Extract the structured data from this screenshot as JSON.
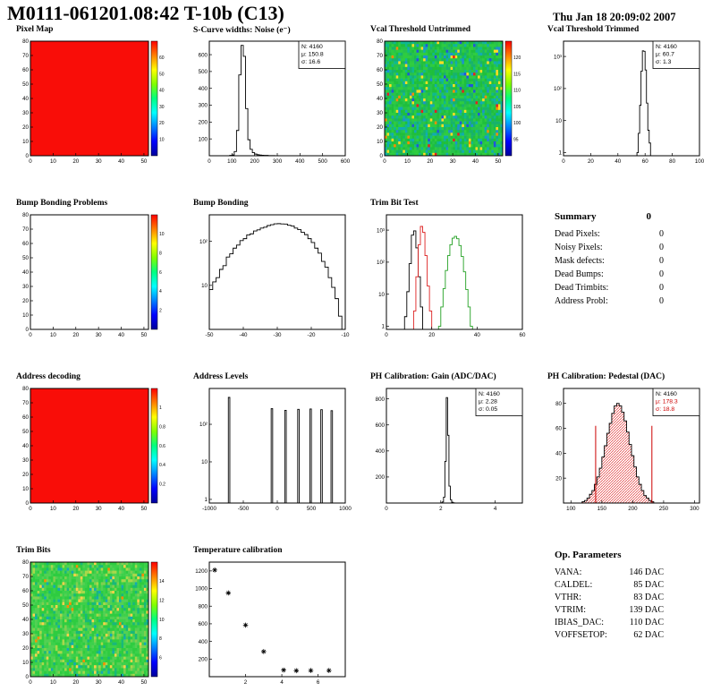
{
  "header": {
    "title": "M0111-061201.08:42 T-10b (C13)",
    "date": "Thu Jan 18 20:09:02 2007"
  },
  "summary": {
    "title": "Summary",
    "header_value": "0",
    "rows": [
      {
        "label": "Dead Pixels:",
        "value": "0"
      },
      {
        "label": "Noisy Pixels:",
        "value": "0"
      },
      {
        "label": "Mask defects:",
        "value": "0"
      },
      {
        "label": "Dead Bumps:",
        "value": "0"
      },
      {
        "label": "Dead Trimbits:",
        "value": "0"
      },
      {
        "label": "Address Probl:",
        "value": "0"
      }
    ]
  },
  "op_params": {
    "title": "Op. Parameters",
    "rows": [
      {
        "label": "VANA:",
        "value": "146 DAC"
      },
      {
        "label": "CALDEL:",
        "value": "85 DAC"
      },
      {
        "label": "VTHR:",
        "value": "83 DAC"
      },
      {
        "label": "VTRIM:",
        "value": "139 DAC"
      },
      {
        "label": "IBIAS_DAC:",
        "value": "110 DAC"
      },
      {
        "label": "VOFFSETOP:",
        "value": "62 DAC"
      }
    ]
  },
  "chart_data": {
    "pixel_map": {
      "title": "Pixel Map",
      "type": "heatmap",
      "x": {
        "min": 0,
        "max": 52,
        "ticks": [
          0,
          10,
          20,
          30,
          40,
          50
        ]
      },
      "y": {
        "min": 0,
        "max": 80,
        "ticks": [
          0,
          10,
          20,
          30,
          40,
          50,
          60,
          70,
          80
        ]
      },
      "heat": {
        "mode": "solid",
        "seed": 1,
        "colors": [
          "#f90d08"
        ]
      },
      "colorbar": {
        "labels": [
          "10",
          "20",
          "30",
          "40",
          "50",
          "60"
        ]
      }
    },
    "s_curve_noise": {
      "title": "S-Curve widths: Noise (e⁻)",
      "type": "bar",
      "x": {
        "min": 0,
        "max": 600,
        "ticks": [
          0,
          100,
          200,
          300,
          400,
          500,
          600
        ]
      },
      "y": {
        "min": 0,
        "max": 680,
        "ticks": [
          100,
          200,
          300,
          400,
          500,
          600
        ]
      },
      "series": [
        {
          "color": "#000000",
          "start": 90,
          "width": 10,
          "counts": [
            2,
            5,
            25,
            150,
            480,
            655,
            590,
            280,
            95,
            38,
            18,
            10,
            6,
            4,
            3,
            2,
            2,
            1,
            1,
            1
          ]
        }
      ],
      "stats": {
        "lines": [
          "N: 4160",
          "μ: 150.8",
          "σ: 16.6"
        ]
      }
    },
    "vcal_untrimmed": {
      "title": "Vcal Threshold Untrimmed",
      "type": "heatmap",
      "x": {
        "min": 0,
        "max": 52,
        "ticks": [
          0,
          10,
          20,
          30,
          40,
          50
        ]
      },
      "y": {
        "min": 0,
        "max": 80,
        "ticks": [
          0,
          10,
          20,
          30,
          40,
          50,
          60,
          70,
          80
        ]
      },
      "heat": {
        "mode": "noise",
        "seed": 5,
        "colors": [
          [
            "#1fbf3c",
            5
          ],
          [
            "#2ecc40",
            5
          ],
          [
            "#27c24c",
            4
          ],
          [
            "#17b36b",
            3
          ],
          [
            "#0fb98f",
            2.2
          ],
          [
            "#12aab4",
            1.6
          ],
          [
            "#1e90d0",
            0.7
          ],
          [
            "#2255dd",
            0.35
          ],
          [
            "#ffdd22",
            0.7
          ],
          [
            "#ff8c00",
            0.25
          ],
          [
            "#e62020",
            0.15
          ]
        ]
      },
      "colorbar": {
        "labels": [
          "95",
          "100",
          "105",
          "110",
          "115",
          "120"
        ]
      }
    },
    "vcal_trimmed": {
      "title": "Vcal Threshold Trimmed",
      "type": "bar",
      "x": {
        "min": 0,
        "max": 100,
        "ticks": [
          0,
          20,
          40,
          60,
          80,
          100
        ]
      },
      "y": {
        "log": true,
        "min": 0.8,
        "max": 3000,
        "ticks": [
          {
            "v": 1,
            "l": "1"
          },
          {
            "v": 10,
            "l": "10"
          },
          {
            "v": 100,
            "l": "10²"
          },
          {
            "v": 1000,
            "l": "10³"
          }
        ]
      },
      "series": [
        {
          "color": "#000000",
          "start": 54,
          "width": 1,
          "counts": [
            1,
            4,
            30,
            350,
            1500,
            1450,
            380,
            35,
            5,
            2
          ]
        }
      ],
      "stats": {
        "lines": [
          "N: 4160",
          "μ: 60.7",
          "σ: 1.3"
        ]
      }
    },
    "bump_problems": {
      "title": "Bump Bonding Problems",
      "type": "heatmap",
      "x": {
        "min": 0,
        "max": 52,
        "ticks": [
          0,
          10,
          20,
          30,
          40,
          50
        ]
      },
      "y": {
        "min": 0,
        "max": 80,
        "ticks": [
          0,
          10,
          20,
          30,
          40,
          50,
          60,
          70,
          80
        ]
      },
      "colorbar": {
        "labels": [
          "2",
          "4",
          "6",
          "8",
          "10"
        ]
      }
    },
    "bump_bonding": {
      "title": "Bump Bonding",
      "type": "bar",
      "x": {
        "min": -50,
        "max": -10,
        "ticks": [
          -50,
          -40,
          -30,
          -20,
          -10
        ]
      },
      "y": {
        "log": true,
        "min": 1,
        "max": 400,
        "ticks": [
          {
            "v": 10,
            "l": "10"
          },
          {
            "v": 100,
            "l": "10²"
          }
        ]
      },
      "series": [
        {
          "color": "#000000",
          "start": -50,
          "width": 1,
          "counts": [
            8,
            12,
            15,
            23,
            28,
            44,
            52,
            70,
            82,
            104,
            115,
            140,
            148,
            172,
            182,
            200,
            210,
            228,
            238,
            250,
            252,
            248,
            247,
            232,
            224,
            200,
            184,
            160,
            142,
            115,
            94,
            70,
            54,
            35,
            26,
            15,
            9,
            5,
            2
          ]
        }
      ]
    },
    "trim_bit_test": {
      "title": "Trim Bit Test",
      "type": "bar",
      "x": {
        "min": 0,
        "max": 60,
        "ticks": [
          0,
          20,
          40,
          60
        ]
      },
      "y": {
        "log": true,
        "min": 0.8,
        "max": 3000,
        "ticks": [
          {
            "v": 1,
            "l": "1"
          },
          {
            "v": 10,
            "l": "10"
          },
          {
            "v": 100,
            "l": "10²"
          },
          {
            "v": 1000,
            "l": "10³"
          }
        ]
      },
      "series": [
        {
          "color": "#000000",
          "start": 8,
          "width": 1,
          "counts": [
            2,
            12,
            90,
            700,
            950,
            280,
            35,
            4
          ]
        },
        {
          "color": "#dd2222",
          "start": 12,
          "width": 1,
          "counts": [
            3,
            35,
            350,
            1300,
            850,
            160,
            18,
            3
          ]
        },
        {
          "color": "#22a022",
          "start": 23,
          "width": 1,
          "counts": [
            1,
            4,
            15,
            55,
            160,
            350,
            560,
            640,
            540,
            330,
            150,
            50,
            14,
            4,
            1
          ]
        }
      ]
    },
    "address_decoding": {
      "title": "Address decoding",
      "type": "heatmap",
      "x": {
        "min": 0,
        "max": 52,
        "ticks": [
          0,
          10,
          20,
          30,
          40,
          50
        ]
      },
      "y": {
        "min": 0,
        "max": 80,
        "ticks": [
          0,
          10,
          20,
          30,
          40,
          50,
          60,
          70,
          80
        ]
      },
      "heat": {
        "mode": "solid",
        "seed": 2,
        "colors": [
          "#f90d08"
        ]
      },
      "colorbar": {
        "labels": [
          "0.2",
          "0.4",
          "0.6",
          "0.8",
          "1"
        ]
      }
    },
    "address_levels": {
      "title": "Address Levels",
      "type": "bar",
      "x": {
        "min": -1000,
        "max": 1000,
        "ticks": [
          -1000,
          -500,
          0,
          500,
          1000
        ]
      },
      "y": {
        "log": true,
        "min": 0.8,
        "max": 900,
        "ticks": [
          {
            "v": 1,
            "l": "1"
          },
          {
            "v": 10,
            "l": "10"
          },
          {
            "v": 100,
            "l": "10²"
          }
        ]
      },
      "series": [
        {
          "color": "#000000",
          "start": -720,
          "width": 22,
          "counts": [
            520
          ]
        },
        {
          "color": "#000000",
          "start": -90,
          "width": 22,
          "counts": [
            260
          ]
        },
        {
          "color": "#000000",
          "start": 110,
          "width": 22,
          "counts": [
            235
          ]
        },
        {
          "color": "#000000",
          "start": 300,
          "width": 22,
          "counts": [
            250
          ]
        },
        {
          "color": "#000000",
          "start": 480,
          "width": 22,
          "counts": [
            255
          ]
        },
        {
          "color": "#000000",
          "start": 640,
          "width": 22,
          "counts": [
            245
          ]
        },
        {
          "color": "#000000",
          "start": 790,
          "width": 22,
          "counts": [
            230
          ]
        }
      ]
    },
    "ph_gain": {
      "title": "PH Calibration: Gain (ADC/DAC)",
      "type": "bar",
      "x": {
        "min": 0,
        "max": 5,
        "ticks": [
          0,
          2,
          4
        ]
      },
      "y": {
        "min": 0,
        "max": 880,
        "ticks": [
          200,
          400,
          600,
          800
        ]
      },
      "series": [
        {
          "color": "#000000",
          "start": 2.0,
          "width": 0.05,
          "counts": [
            2,
            8,
            45,
            320,
            810,
            520,
            130,
            25,
            6,
            2
          ]
        }
      ],
      "stats": {
        "lines": [
          "N: 4160",
          "μ: 2.28",
          "σ: 0.05"
        ]
      }
    },
    "ph_pedestal": {
      "title": "PH Calibration: Pedestal (DAC)",
      "type": "bar",
      "x": {
        "min": 88,
        "max": 308,
        "ticks": [
          100,
          150,
          200,
          250,
          300
        ]
      },
      "y": {
        "min": 0,
        "max": 92,
        "ticks": [
          20,
          40,
          60,
          80
        ]
      },
      "series": [
        {
          "color": "#000000",
          "fill": "hatch-red",
          "start": 118,
          "width": 4,
          "counts": [
            1,
            2,
            4,
            7,
            10,
            15,
            21,
            28,
            37,
            46,
            56,
            64,
            72,
            78,
            80,
            78,
            73,
            66,
            57,
            47,
            38,
            29,
            21,
            15,
            10,
            6,
            4,
            2,
            1
          ]
        }
      ],
      "vlines": [
        {
          "x": 140,
          "y": 62,
          "color": "#cc0000"
        },
        {
          "x": 231,
          "y": 62,
          "color": "#cc0000"
        }
      ],
      "stats": {
        "lines": [
          "N: 4160",
          "μ: 178.3",
          "σ: 18.8"
        ],
        "colors": [
          "#000000",
          "#cc0000",
          "#cc0000"
        ]
      }
    },
    "trim_bits": {
      "title": "Trim Bits",
      "type": "heatmap",
      "x": {
        "min": 0,
        "max": 52,
        "ticks": [
          0,
          10,
          20,
          30,
          40,
          50
        ]
      },
      "y": {
        "min": 0,
        "max": 80,
        "ticks": [
          0,
          10,
          20,
          30,
          40,
          50,
          60,
          70,
          80
        ]
      },
      "heat": {
        "mode": "noise",
        "seed": 11,
        "colors": [
          [
            "#2ecc40",
            6
          ],
          [
            "#3cd04a",
            5
          ],
          [
            "#52d053",
            4
          ],
          [
            "#7ed04f",
            2
          ],
          [
            "#a8d84a",
            1.2
          ],
          [
            "#18b87a",
            1.6
          ],
          [
            "#12aab4",
            0.5
          ],
          [
            "#ffd24a",
            0.5
          ],
          [
            "#ff8c00",
            0.15
          ]
        ]
      },
      "colorbar": {
        "labels": [
          "6",
          "8",
          "10",
          "12",
          "14"
        ]
      }
    },
    "temp_cal": {
      "title": "Temperature calibration",
      "type": "scatter",
      "x": {
        "min": 0,
        "max": 7.5,
        "ticks": [
          2,
          4,
          6
        ]
      },
      "y": {
        "min": 0,
        "max": 1300,
        "ticks": [
          200,
          400,
          600,
          800,
          1000,
          1200
        ]
      },
      "points": [
        [
          0.3,
          1210
        ],
        [
          1.05,
          950
        ],
        [
          2.0,
          585
        ],
        [
          3.0,
          285
        ],
        [
          4.1,
          75
        ],
        [
          4.8,
          68
        ],
        [
          5.6,
          70
        ],
        [
          6.6,
          70
        ]
      ]
    }
  }
}
